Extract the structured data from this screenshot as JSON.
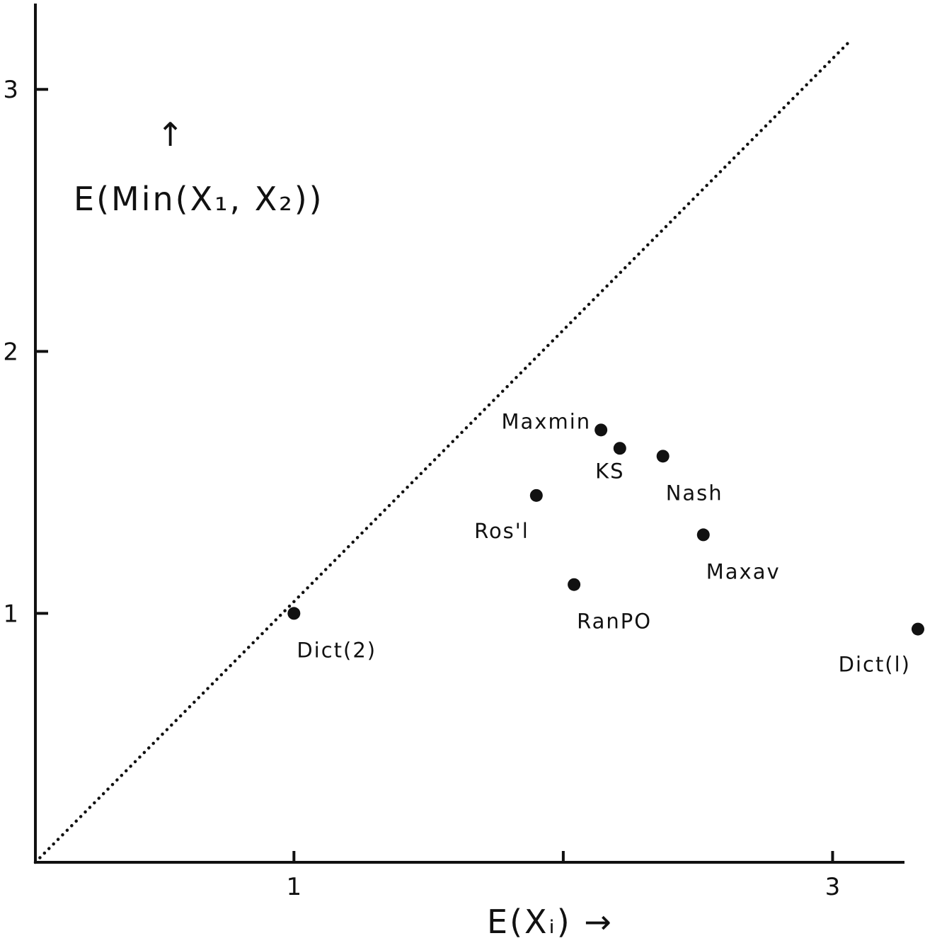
{
  "chart_data": {
    "type": "scatter",
    "xlabel": "E(Xᵢ) →",
    "ylabel": "E(Min(X₁, X₂))",
    "ylabel_arrow": "↑",
    "xlim": [
      0.04,
      3.28
    ],
    "ylim": [
      0.05,
      3.26
    ],
    "x_ticks": [
      {
        "value": 1,
        "label": "1"
      },
      {
        "value": 2,
        "label": ""
      },
      {
        "value": 3,
        "label": "3"
      }
    ],
    "y_ticks": [
      {
        "value": 1,
        "label": "1"
      },
      {
        "value": 2,
        "label": "2"
      },
      {
        "value": 3,
        "label": "3"
      }
    ],
    "diagonal": {
      "style": "dotted",
      "from": [
        0.04,
        0.05
      ],
      "to": [
        3.07,
        3.19
      ]
    },
    "points": [
      {
        "label": "Dict(2)",
        "x": 1.0,
        "y": 1.0,
        "label_pos": "below-right"
      },
      {
        "label": "Ros'l",
        "x": 1.9,
        "y": 1.45,
        "label_pos": "below-left"
      },
      {
        "label": "Maxmin",
        "x": 2.14,
        "y": 1.7,
        "label_pos": "left"
      },
      {
        "label": "KS",
        "x": 2.21,
        "y": 1.63,
        "label_pos": "below"
      },
      {
        "label": "Nash",
        "x": 2.37,
        "y": 1.6,
        "label_pos": "below-right"
      },
      {
        "label": "Maxav",
        "x": 2.52,
        "y": 1.3,
        "label_pos": "below-right"
      },
      {
        "label": "RanPO",
        "x": 2.04,
        "y": 1.11,
        "label_pos": "below-right"
      },
      {
        "label": "Dict(l)",
        "x": 3.35,
        "y": 0.94,
        "label_pos": "below-left"
      }
    ],
    "grid": false,
    "legend": "none"
  }
}
